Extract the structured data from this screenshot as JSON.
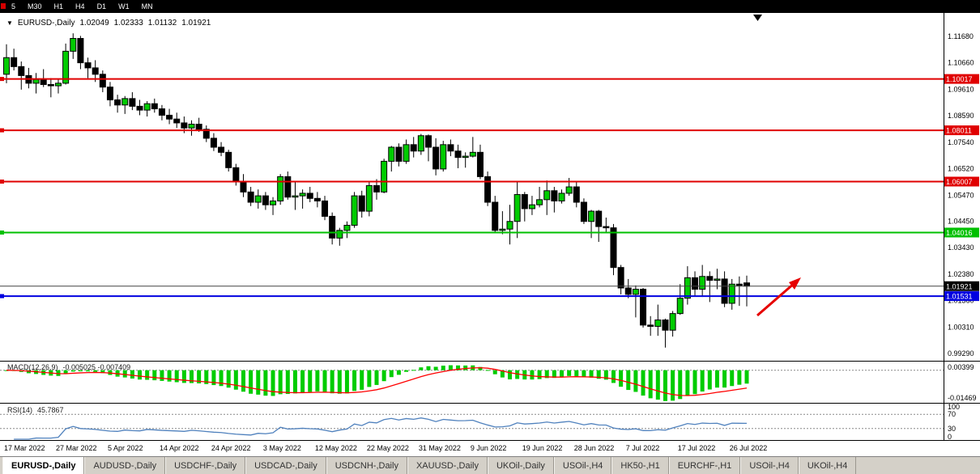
{
  "toolbar": {
    "timeframes": [
      "5",
      "M30",
      "H1",
      "H4",
      "D1",
      "W1",
      "MN"
    ]
  },
  "icons": {
    "symbol_marker": "▼"
  },
  "chart_header": {
    "symbol": "EURUSD-,Daily",
    "open": "1.02049",
    "high": "1.02333",
    "low": "1.01132",
    "close": "1.01921"
  },
  "price_axis": {
    "labels": [
      "1.11680",
      "1.10660",
      "1.09610",
      "1.08590",
      "1.07540",
      "1.06520",
      "1.05470",
      "1.04450",
      "1.03430",
      "1.02380",
      "1.01360",
      "1.00310",
      "0.99290"
    ]
  },
  "date_axis": {
    "labels": [
      {
        "text": "17 Mar 2022",
        "index": 0
      },
      {
        "text": "27 Mar 2022",
        "index": 7
      },
      {
        "text": "5 Apr 2022",
        "index": 14
      },
      {
        "text": "14 Apr 2022",
        "index": 21
      },
      {
        "text": "24 Apr 2022",
        "index": 28
      },
      {
        "text": "3 May 2022",
        "index": 35
      },
      {
        "text": "12 May 2022",
        "index": 42
      },
      {
        "text": "22 May 2022",
        "index": 49
      },
      {
        "text": "31 May 2022",
        "index": 56
      },
      {
        "text": "9 Jun 2022",
        "index": 63
      },
      {
        "text": "19 Jun 2022",
        "index": 70
      },
      {
        "text": "28 Jun 2022",
        "index": 77
      },
      {
        "text": "7 Jul 2022",
        "index": 84
      },
      {
        "text": "17 Jul 2022",
        "index": 91
      },
      {
        "text": "26 Jul 2022",
        "index": 98
      }
    ]
  },
  "hlines": [
    {
      "price": 1.10017,
      "label": "1.10017",
      "color": "#e00000"
    },
    {
      "price": 1.08011,
      "label": "1.08011",
      "color": "#e00000"
    },
    {
      "price": 1.06007,
      "label": "1.06007",
      "color": "#e00000"
    },
    {
      "price": 1.04016,
      "label": "1.04016",
      "color": "#00c000"
    },
    {
      "price": 1.01531,
      "label": "1.01531",
      "color": "#0000e0"
    }
  ],
  "bid_line": {
    "price": 1.01921,
    "label": "1.01921",
    "color": "#000000"
  },
  "indicators": {
    "macd": {
      "label": "MACD(12,26,9)",
      "values_text": "-0.005025 -0.007409",
      "axis_max": "0.00399",
      "axis_min": "-0.01469",
      "histogram_color": "#00cc00",
      "signal_color": "#ff0000"
    },
    "rsi": {
      "label": "RSI(14)",
      "value_text": "45.7867",
      "levels": [
        "100",
        "70",
        "30",
        "0"
      ],
      "line_color": "#4f81bd"
    }
  },
  "annotations": {
    "arrow": {
      "color": "#e60000",
      "direction": "up-right"
    }
  },
  "tabs": [
    {
      "label": "EURUSD-,Daily",
      "active": true
    },
    {
      "label": "AUDUSD-,Daily",
      "active": false
    },
    {
      "label": "USDCHF-,Daily",
      "active": false
    },
    {
      "label": "USDCAD-,Daily",
      "active": false
    },
    {
      "label": "USDCNH-,Daily",
      "active": false
    },
    {
      "label": "XAUUSD-,Daily",
      "active": false
    },
    {
      "label": "UKOil-,Daily",
      "active": false
    },
    {
      "label": "USOil-,H4",
      "active": false
    },
    {
      "label": "HK50-,H1",
      "active": false
    },
    {
      "label": "EURCHF-,H1",
      "active": false
    },
    {
      "label": "USOil-,H4",
      "active": false
    },
    {
      "label": "UKOil-,H4",
      "active": false
    }
  ],
  "chart_data": {
    "type": "candlestick",
    "symbol": "EURUSD",
    "timeframe": "Daily",
    "ylim": [
      0.9929,
      1.1168
    ],
    "up_color": "#00cc00",
    "down_color": "#000000",
    "candles": [
      [
        1.102,
        1.1137,
        1.0985,
        1.1085
      ],
      [
        1.1085,
        1.112,
        1.1035,
        1.105
      ],
      [
        1.105,
        1.107,
        1.096,
        1.1015
      ],
      [
        1.1015,
        1.1045,
        1.0965,
        1.0985
      ],
      [
        1.0985,
        1.1025,
        1.0945,
        1.1
      ],
      [
        1.1,
        1.104,
        1.097,
        1.098
      ],
      [
        1.098,
        1.1005,
        1.093,
        1.0975
      ],
      [
        1.0975,
        1.1,
        1.0945,
        1.0985
      ],
      [
        1.0985,
        1.114,
        1.098,
        1.111
      ],
      [
        1.111,
        1.118,
        1.108,
        1.116
      ],
      [
        1.116,
        1.117,
        1.104,
        1.1065
      ],
      [
        1.1065,
        1.1085,
        1.1005,
        1.1045
      ],
      [
        1.1045,
        1.1075,
        1.099,
        1.102
      ],
      [
        1.102,
        1.1035,
        1.095,
        1.097
      ],
      [
        1.097,
        1.099,
        1.0895,
        1.092
      ],
      [
        1.092,
        1.094,
        1.087,
        1.09
      ],
      [
        1.09,
        1.0935,
        1.0865,
        1.0925
      ],
      [
        1.0925,
        1.095,
        1.088,
        1.0895
      ],
      [
        1.0895,
        1.092,
        1.086,
        1.088
      ],
      [
        1.088,
        1.0915,
        1.0855,
        1.0905
      ],
      [
        1.0905,
        1.0925,
        1.087,
        1.0885
      ],
      [
        1.0885,
        1.09,
        1.084,
        1.086
      ],
      [
        1.086,
        1.0885,
        1.0825,
        1.0845
      ],
      [
        1.0845,
        1.087,
        1.081,
        1.083
      ],
      [
        1.083,
        1.0855,
        1.079,
        1.081
      ],
      [
        1.081,
        1.084,
        1.078,
        1.0825
      ],
      [
        1.0825,
        1.085,
        1.0795,
        1.0805
      ],
      [
        1.0805,
        1.082,
        1.0755,
        1.077
      ],
      [
        1.077,
        1.079,
        1.072,
        1.0735
      ],
      [
        1.0735,
        1.0755,
        1.07,
        1.0715
      ],
      [
        1.0715,
        1.0725,
        1.064,
        1.0655
      ],
      [
        1.0655,
        1.067,
        1.0585,
        1.06
      ],
      [
        1.06,
        1.063,
        1.054,
        1.056
      ],
      [
        1.056,
        1.058,
        1.0505,
        1.052
      ],
      [
        1.052,
        1.057,
        1.0495,
        1.0545
      ],
      [
        1.0545,
        1.056,
        1.049,
        1.051
      ],
      [
        1.051,
        1.054,
        1.047,
        1.0525
      ],
      [
        1.0525,
        1.063,
        1.051,
        1.062
      ],
      [
        1.062,
        1.064,
        1.053,
        1.054
      ],
      [
        1.054,
        1.06,
        1.049,
        1.0545
      ],
      [
        1.0545,
        1.057,
        1.0495,
        1.0555
      ],
      [
        1.0555,
        1.058,
        1.052,
        1.0535
      ],
      [
        1.0535,
        1.056,
        1.05,
        1.0525
      ],
      [
        1.0525,
        1.0545,
        1.045,
        1.0465
      ],
      [
        1.0465,
        1.048,
        1.0355,
        1.038
      ],
      [
        1.038,
        1.042,
        1.035,
        1.041
      ],
      [
        1.041,
        1.0445,
        1.038,
        1.043
      ],
      [
        1.043,
        1.056,
        1.042,
        1.0545
      ],
      [
        1.0545,
        1.0565,
        1.046,
        1.0485
      ],
      [
        1.0485,
        1.06,
        1.0465,
        1.0585
      ],
      [
        1.0585,
        1.061,
        1.053,
        1.056
      ],
      [
        1.056,
        1.069,
        1.0555,
        1.068
      ],
      [
        1.068,
        1.074,
        1.064,
        1.0735
      ],
      [
        1.0735,
        1.075,
        1.066,
        1.068
      ],
      [
        1.068,
        1.0765,
        1.067,
        1.0745
      ],
      [
        1.0745,
        1.0775,
        1.0695,
        1.072
      ],
      [
        1.072,
        1.0787,
        1.0705,
        1.078
      ],
      [
        1.078,
        1.0785,
        1.068,
        1.0735
      ],
      [
        1.0735,
        1.077,
        1.0625,
        1.065
      ],
      [
        1.065,
        1.076,
        1.064,
        1.0745
      ],
      [
        1.0745,
        1.0765,
        1.07,
        1.072
      ],
      [
        1.072,
        1.0745,
        1.0653,
        1.0695
      ],
      [
        1.0695,
        1.0715,
        1.0655,
        1.07
      ],
      [
        1.07,
        1.0775,
        1.0695,
        1.0715
      ],
      [
        1.0715,
        1.0745,
        1.061,
        1.062
      ],
      [
        1.062,
        1.064,
        1.0505,
        1.052
      ],
      [
        1.052,
        1.0545,
        1.04,
        1.041
      ],
      [
        1.041,
        1.0485,
        1.0395,
        1.0415
      ],
      [
        1.0415,
        1.051,
        1.0355,
        1.0445
      ],
      [
        1.0445,
        1.06,
        1.038,
        1.055
      ],
      [
        1.055,
        1.056,
        1.0445,
        1.0495
      ],
      [
        1.0495,
        1.0545,
        1.047,
        1.051
      ],
      [
        1.051,
        1.058,
        1.05,
        1.053
      ],
      [
        1.053,
        1.0605,
        1.047,
        1.0565
      ],
      [
        1.0565,
        1.058,
        1.048,
        1.0525
      ],
      [
        1.0525,
        1.057,
        1.0515,
        1.0555
      ],
      [
        1.0555,
        1.0615,
        1.0545,
        1.058
      ],
      [
        1.058,
        1.06,
        1.05,
        1.052
      ],
      [
        1.052,
        1.0535,
        1.0435,
        1.0445
      ],
      [
        1.0445,
        1.049,
        1.038,
        1.0485
      ],
      [
        1.0485,
        1.049,
        1.0365,
        1.0425
      ],
      [
        1.0425,
        1.046,
        1.04,
        1.042
      ],
      [
        1.042,
        1.0435,
        1.0235,
        1.0265
      ],
      [
        1.0265,
        1.0275,
        1.016,
        1.0185
      ],
      [
        1.0185,
        1.022,
        1.0145,
        1.016
      ],
      [
        1.016,
        1.0195,
        1.007,
        1.018
      ],
      [
        1.018,
        1.0185,
        1.003,
        1.004
      ],
      [
        1.004,
        1.0075,
        0.9998,
        1.0035
      ],
      [
        1.0035,
        1.012,
        0.9998,
        1.006
      ],
      [
        1.006,
        1.0065,
        0.9952,
        1.002
      ],
      [
        1.002,
        1.0095,
        0.9995,
        1.0085
      ],
      [
        1.0085,
        1.02,
        1.008,
        1.0145
      ],
      [
        1.0145,
        1.027,
        1.012,
        1.0225
      ],
      [
        1.0225,
        1.025,
        1.0155,
        1.018
      ],
      [
        1.018,
        1.0275,
        1.015,
        1.023
      ],
      [
        1.023,
        1.025,
        1.013,
        1.0215
      ],
      [
        1.0215,
        1.026,
        1.018,
        1.022
      ],
      [
        1.022,
        1.025,
        1.011,
        1.0125
      ],
      [
        1.0125,
        1.022,
        1.01,
        1.02
      ],
      [
        1.02,
        1.023,
        1.0115,
        1.0195
      ],
      [
        1.02049,
        1.02333,
        1.01132,
        1.01921
      ]
    ]
  }
}
